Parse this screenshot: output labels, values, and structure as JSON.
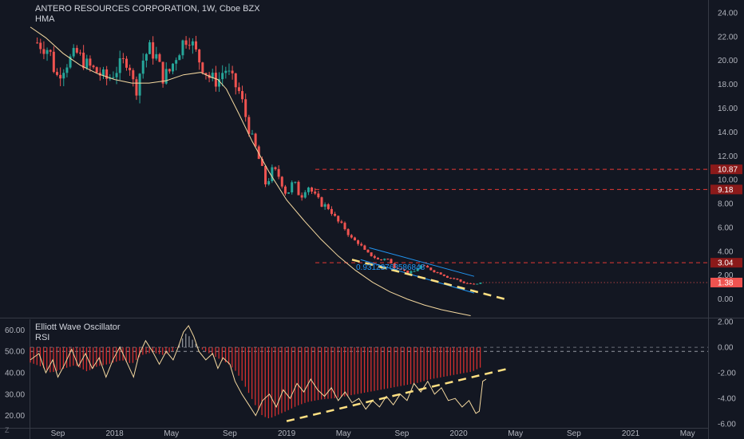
{
  "header": {
    "title": "ANTERO RESOURCES CORPORATION, 1W, Cboe BZX",
    "indicator": "HMA"
  },
  "lower_panel": {
    "indicator1": "Elliott Wave Oscillator",
    "indicator2": "RSI"
  },
  "logo_text": "Z",
  "colors": {
    "background": "#131722",
    "up": "#26a69a",
    "down": "#ef5350",
    "hma": "#f5d9a0",
    "channel": "#2196f3",
    "trend": "#ffe082",
    "level": "#e53935",
    "ewo": "#d32f2f"
  },
  "price_annotation": "0.93123763586848",
  "chart_data": [
    {
      "type": "candlestick",
      "title": "ANTERO RESOURCES CORPORATION, 1W, Cboe BZX",
      "y_axis_ticks": [
        "24.00",
        "22.00",
        "20.00",
        "18.00",
        "16.00",
        "14.00",
        "12.00",
        "10.00",
        "8.00",
        "6.00",
        "4.00",
        "2.00",
        "0.00"
      ],
      "ylim": [
        -1.5,
        24.8
      ],
      "x_axis_ticks": [
        "Sep",
        "2018",
        "May",
        "Sep",
        "2019",
        "May",
        "Sep",
        "2020",
        "May",
        "Sep",
        "2021",
        "May"
      ],
      "xlim": [
        2017.51,
        2021.45
      ],
      "close_path": [
        [
          2017.55,
          21.5
        ],
        [
          2017.62,
          20.9
        ],
        [
          2017.66,
          18.6
        ],
        [
          2017.72,
          19.8
        ],
        [
          2017.78,
          20.6
        ],
        [
          2017.84,
          19.6
        ],
        [
          2017.9,
          19.0
        ],
        [
          2017.96,
          18.4
        ],
        [
          2018.02,
          19.4
        ],
        [
          2018.08,
          20.2
        ],
        [
          2018.12,
          17.2
        ],
        [
          2018.16,
          19.9
        ],
        [
          2018.2,
          21.0
        ],
        [
          2018.24,
          20.4
        ],
        [
          2018.28,
          18.6
        ],
        [
          2018.32,
          19.1
        ],
        [
          2018.36,
          20.5
        ],
        [
          2018.4,
          21.6
        ],
        [
          2018.43,
          22.2
        ],
        [
          2018.46,
          21.0
        ],
        [
          2018.5,
          19.8
        ],
        [
          2018.55,
          18.6
        ],
        [
          2018.6,
          18.2
        ],
        [
          2018.64,
          19.4
        ],
        [
          2018.68,
          18.4
        ],
        [
          2018.73,
          17.2
        ],
        [
          2018.76,
          15.4
        ],
        [
          2018.79,
          13.8
        ],
        [
          2018.82,
          12.6
        ],
        [
          2018.86,
          10.7
        ],
        [
          2018.88,
          9.5
        ],
        [
          2018.92,
          10.9
        ],
        [
          2018.96,
          10.2
        ],
        [
          2019.0,
          8.7
        ],
        [
          2019.04,
          9.9
        ],
        [
          2019.08,
          8.5
        ],
        [
          2019.12,
          9.6
        ],
        [
          2019.16,
          8.7
        ],
        [
          2019.2,
          8.0
        ],
        [
          2019.25,
          7.6
        ],
        [
          2019.29,
          6.6
        ],
        [
          2019.34,
          5.9
        ],
        [
          2019.38,
          5.0
        ],
        [
          2019.42,
          4.7
        ],
        [
          2019.46,
          3.9
        ],
        [
          2019.5,
          3.6
        ],
        [
          2019.54,
          3.2
        ],
        [
          2019.58,
          3.5
        ],
        [
          2019.62,
          2.7
        ],
        [
          2019.66,
          2.6
        ],
        [
          2019.7,
          2.2
        ],
        [
          2019.74,
          2.3
        ],
        [
          2019.78,
          2.8
        ],
        [
          2019.82,
          2.6
        ],
        [
          2019.86,
          2.3
        ],
        [
          2019.9,
          2.1
        ],
        [
          2019.94,
          1.8
        ],
        [
          2019.98,
          1.7
        ],
        [
          2020.02,
          1.4
        ],
        [
          2020.06,
          1.3
        ],
        [
          2020.1,
          1.2
        ],
        [
          2020.14,
          1.4
        ]
      ],
      "hma_path": [
        [
          2017.51,
          22.8
        ],
        [
          2017.6,
          21.9
        ],
        [
          2017.7,
          20.6
        ],
        [
          2017.8,
          19.6
        ],
        [
          2017.9,
          18.9
        ],
        [
          2018.0,
          18.4
        ],
        [
          2018.1,
          18.1
        ],
        [
          2018.2,
          18.1
        ],
        [
          2018.3,
          18.3
        ],
        [
          2018.4,
          18.8
        ],
        [
          2018.5,
          19.0
        ],
        [
          2018.56,
          18.6
        ],
        [
          2018.6,
          18.4
        ],
        [
          2018.65,
          17.6
        ],
        [
          2018.72,
          15.6
        ],
        [
          2018.8,
          13.2
        ],
        [
          2018.9,
          10.6
        ],
        [
          2019.0,
          8.3
        ],
        [
          2019.1,
          6.6
        ],
        [
          2019.2,
          5.0
        ],
        [
          2019.3,
          3.6
        ],
        [
          2019.4,
          2.4
        ],
        [
          2019.5,
          1.4
        ],
        [
          2019.6,
          0.6
        ],
        [
          2019.7,
          0.0
        ],
        [
          2019.8,
          -0.5
        ],
        [
          2019.9,
          -0.9
        ],
        [
          2020.0,
          -1.2
        ],
        [
          2020.07,
          -1.4
        ]
      ],
      "channel_upper": [
        [
          2019.48,
          4.3
        ],
        [
          2020.09,
          1.9
        ]
      ],
      "channel_lower": [
        [
          2019.43,
          3.3
        ],
        [
          2020.09,
          0.5
        ]
      ],
      "trend_line": [
        [
          2019.38,
          3.3
        ],
        [
          2020.28,
          -0.05
        ]
      ],
      "levels": [
        {
          "value": 10.87,
          "label": "10.87"
        },
        {
          "value": 9.18,
          "label": "9.18"
        },
        {
          "value": 3.04,
          "label": "3.04"
        }
      ],
      "last_price": {
        "value": 1.38,
        "label": "1.38"
      }
    },
    {
      "type": "line",
      "title": "Elliott Wave Oscillator / RSI",
      "left_axis_ticks": [
        "60.00",
        "50.00",
        "40.00",
        "30.00",
        "20.00"
      ],
      "right_axis_ticks": [
        "2.00",
        "0.00",
        "-2.00",
        "-4.00",
        "-6.00"
      ],
      "rsi_ylim": [
        15,
        65
      ],
      "ewo_ylim": [
        -6.2,
        2.2
      ],
      "rsi_path": [
        [
          2017.51,
          46
        ],
        [
          2017.56,
          49
        ],
        [
          2017.6,
          40
        ],
        [
          2017.64,
          46
        ],
        [
          2017.67,
          38
        ],
        [
          2017.71,
          44
        ],
        [
          2017.75,
          51
        ],
        [
          2017.79,
          43
        ],
        [
          2017.83,
          49
        ],
        [
          2017.87,
          42
        ],
        [
          2017.91,
          47
        ],
        [
          2017.95,
          38
        ],
        [
          2017.99,
          46
        ],
        [
          2018.03,
          52
        ],
        [
          2018.07,
          45
        ],
        [
          2018.11,
          38
        ],
        [
          2018.14,
          48
        ],
        [
          2018.18,
          55
        ],
        [
          2018.22,
          50
        ],
        [
          2018.26,
          44
        ],
        [
          2018.3,
          50
        ],
        [
          2018.34,
          46
        ],
        [
          2018.37,
          52
        ],
        [
          2018.4,
          59
        ],
        [
          2018.43,
          62
        ],
        [
          2018.46,
          57
        ],
        [
          2018.49,
          50
        ],
        [
          2018.53,
          46
        ],
        [
          2018.57,
          49
        ],
        [
          2018.6,
          42
        ],
        [
          2018.63,
          47
        ],
        [
          2018.67,
          44
        ],
        [
          2018.7,
          36
        ],
        [
          2018.74,
          30
        ],
        [
          2018.78,
          25
        ],
        [
          2018.82,
          20
        ],
        [
          2018.86,
          27
        ],
        [
          2018.9,
          30
        ],
        [
          2018.94,
          24
        ],
        [
          2018.98,
          32
        ],
        [
          2019.02,
          28
        ],
        [
          2019.06,
          35
        ],
        [
          2019.1,
          31
        ],
        [
          2019.14,
          37
        ],
        [
          2019.18,
          32
        ],
        [
          2019.22,
          29
        ],
        [
          2019.26,
          33
        ],
        [
          2019.3,
          27
        ],
        [
          2019.34,
          31
        ],
        [
          2019.38,
          26
        ],
        [
          2019.42,
          28
        ],
        [
          2019.46,
          23
        ],
        [
          2019.5,
          27
        ],
        [
          2019.54,
          24
        ],
        [
          2019.58,
          29
        ],
        [
          2019.62,
          25
        ],
        [
          2019.66,
          30
        ],
        [
          2019.7,
          27
        ],
        [
          2019.74,
          35
        ],
        [
          2019.78,
          31
        ],
        [
          2019.82,
          36
        ],
        [
          2019.86,
          30
        ],
        [
          2019.9,
          33
        ],
        [
          2019.94,
          27
        ],
        [
          2019.98,
          28
        ],
        [
          2020.02,
          24
        ],
        [
          2020.06,
          27
        ],
        [
          2020.1,
          21
        ],
        [
          2020.12,
          22
        ],
        [
          2020.14,
          36
        ],
        [
          2020.16,
          37
        ]
      ],
      "ewo_path": [
        [
          2017.51,
          -1.2
        ],
        [
          2017.57,
          -1.5
        ],
        [
          2017.63,
          -2.0
        ],
        [
          2017.7,
          -1.7
        ],
        [
          2017.77,
          -1.4
        ],
        [
          2017.84,
          -1.9
        ],
        [
          2017.9,
          -1.5
        ],
        [
          2017.97,
          -1.3
        ],
        [
          2018.04,
          -1.0
        ],
        [
          2018.1,
          -1.3
        ],
        [
          2018.16,
          -0.6
        ],
        [
          2018.22,
          -0.4
        ],
        [
          2018.28,
          -0.6
        ],
        [
          2018.34,
          -0.3
        ],
        [
          2018.38,
          0.3
        ],
        [
          2018.41,
          1.1
        ],
        [
          2018.44,
          0.8
        ],
        [
          2018.47,
          0.3
        ],
        [
          2018.5,
          -0.1
        ],
        [
          2018.54,
          -0.4
        ],
        [
          2018.58,
          -0.7
        ],
        [
          2018.62,
          -1.0
        ],
        [
          2018.66,
          -1.3
        ],
        [
          2018.7,
          -1.8
        ],
        [
          2018.74,
          -2.6
        ],
        [
          2018.78,
          -3.6
        ],
        [
          2018.82,
          -4.6
        ],
        [
          2018.86,
          -5.4
        ],
        [
          2018.9,
          -5.6
        ],
        [
          2018.95,
          -5.3
        ],
        [
          2019.0,
          -5.0
        ],
        [
          2019.06,
          -4.6
        ],
        [
          2019.12,
          -4.3
        ],
        [
          2019.2,
          -4.1
        ],
        [
          2019.28,
          -4.0
        ],
        [
          2019.36,
          -3.8
        ],
        [
          2019.44,
          -3.6
        ],
        [
          2019.52,
          -3.4
        ],
        [
          2019.6,
          -3.2
        ],
        [
          2019.68,
          -3.0
        ],
        [
          2019.76,
          -2.8
        ],
        [
          2019.84,
          -2.5
        ],
        [
          2019.92,
          -2.3
        ],
        [
          2020.0,
          -2.1
        ],
        [
          2020.08,
          -1.9
        ],
        [
          2020.14,
          -1.5
        ]
      ],
      "ewo_trend_line": [
        [
          2019.0,
          -5.8
        ],
        [
          2020.28,
          -1.7
        ]
      ],
      "rsi_midline": 50
    }
  ]
}
